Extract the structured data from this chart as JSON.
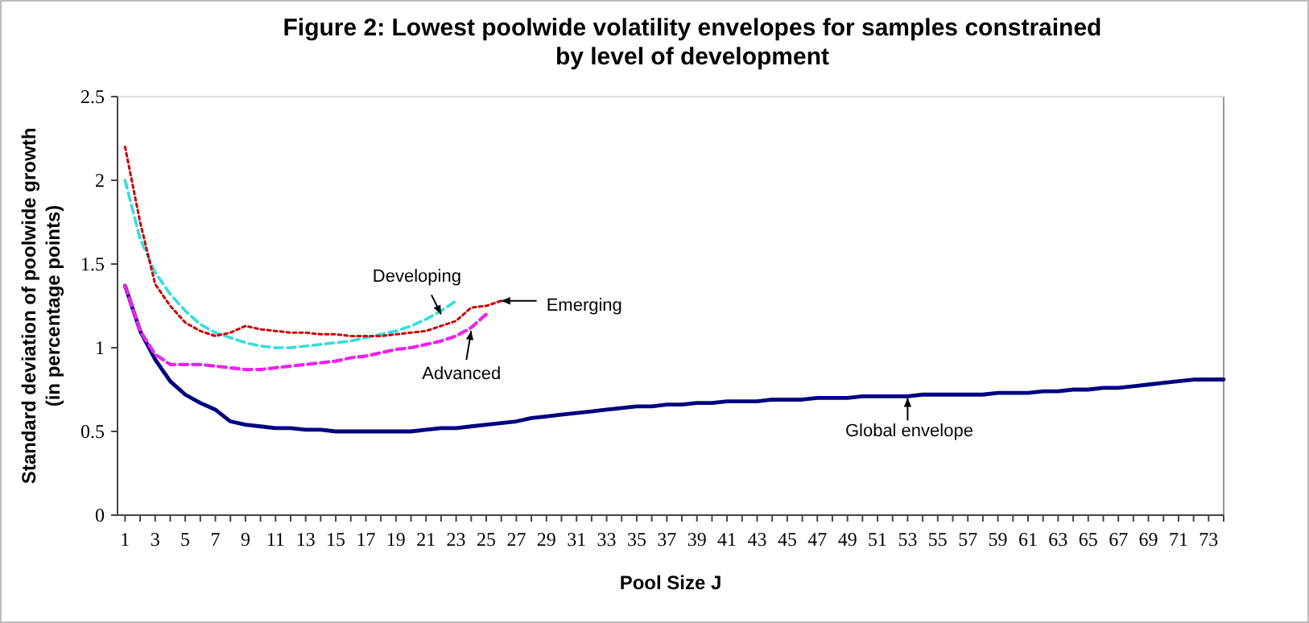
{
  "chart_data": {
    "type": "line",
    "title": "Figure 2: Lowest poolwide volatility envelopes for samples constrained\nby level of development",
    "xlabel": "Pool Size J",
    "ylabel": "Standard deviation of poolwide growth\n(in percentage points)",
    "series": [
      {
        "color": "#cc0000",
        "line_style": "dotted",
        "x": [
          1,
          2,
          3,
          4,
          5,
          6,
          7,
          8,
          9,
          10,
          11,
          12,
          13,
          14,
          15,
          16,
          17,
          18,
          19,
          20,
          21,
          22,
          23,
          24,
          25,
          26
        ],
        "values": [
          2.2,
          1.75,
          1.38,
          1.25,
          1.15,
          1.1,
          1.07,
          1.09,
          1.13,
          1.11,
          1.1,
          1.09,
          1.09,
          1.08,
          1.08,
          1.07,
          1.07,
          1.07,
          1.08,
          1.09,
          1.1,
          1.13,
          1.16,
          1.24,
          1.25,
          1.28
        ]
      },
      {
        "color": "#33dddd",
        "line_style": "dashed",
        "x": [
          1,
          2,
          3,
          4,
          5,
          6,
          7,
          8,
          9,
          10,
          11,
          12,
          13,
          14,
          15,
          16,
          17,
          18,
          19,
          20,
          21,
          22,
          23
        ],
        "values": [
          2.0,
          1.65,
          1.45,
          1.32,
          1.22,
          1.14,
          1.09,
          1.06,
          1.03,
          1.01,
          1.0,
          1.0,
          1.01,
          1.02,
          1.03,
          1.04,
          1.06,
          1.08,
          1.1,
          1.13,
          1.17,
          1.22,
          1.28
        ]
      },
      {
        "color": "#ee22ee",
        "line_style": "dashed",
        "x": [
          1,
          2,
          3,
          4,
          5,
          6,
          7,
          8,
          9,
          10,
          11,
          12,
          13,
          14,
          15,
          16,
          17,
          18,
          19,
          20,
          21,
          22,
          23,
          24,
          25
        ],
        "values": [
          1.37,
          1.1,
          0.96,
          0.9,
          0.9,
          0.9,
          0.89,
          0.88,
          0.87,
          0.87,
          0.88,
          0.89,
          0.9,
          0.91,
          0.92,
          0.94,
          0.95,
          0.97,
          0.99,
          1.0,
          1.02,
          1.04,
          1.07,
          1.12,
          1.2
        ]
      },
      {
        "color": "#000080",
        "line_style": "solid",
        "x": [
          1,
          2,
          3,
          4,
          5,
          6,
          7,
          8,
          9,
          10,
          11,
          12,
          13,
          14,
          15,
          16,
          17,
          18,
          19,
          20,
          21,
          22,
          23,
          24,
          25,
          26,
          27,
          28,
          29,
          30,
          31,
          32,
          33,
          34,
          35,
          36,
          37,
          38,
          39,
          40,
          41,
          42,
          43,
          44,
          45,
          46,
          47,
          48,
          49,
          50,
          51,
          52,
          53,
          54,
          55,
          56,
          57,
          58,
          59,
          60,
          61,
          62,
          63,
          64,
          65,
          66,
          67,
          68,
          69,
          70,
          71,
          72,
          73,
          74
        ],
        "values": [
          1.37,
          1.1,
          0.93,
          0.8,
          0.72,
          0.67,
          0.63,
          0.56,
          0.54,
          0.53,
          0.52,
          0.52,
          0.51,
          0.51,
          0.5,
          0.5,
          0.5,
          0.5,
          0.5,
          0.5,
          0.51,
          0.52,
          0.52,
          0.53,
          0.54,
          0.55,
          0.56,
          0.58,
          0.59,
          0.6,
          0.61,
          0.62,
          0.63,
          0.64,
          0.65,
          0.65,
          0.66,
          0.66,
          0.67,
          0.67,
          0.68,
          0.68,
          0.68,
          0.69,
          0.69,
          0.69,
          0.7,
          0.7,
          0.7,
          0.71,
          0.71,
          0.71,
          0.71,
          0.72,
          0.72,
          0.72,
          0.72,
          0.72,
          0.73,
          0.73,
          0.73,
          0.74,
          0.74,
          0.75,
          0.75,
          0.76,
          0.76,
          0.77,
          0.78,
          0.79,
          0.8,
          0.81,
          0.81,
          0.81
        ]
      }
    ],
    "annotations": [
      {
        "text": "Developing",
        "x": 22,
        "y": 1.2
      },
      {
        "text": "Emerging",
        "x": 26,
        "y": 1.28
      },
      {
        "text": "Advanced",
        "x": 24,
        "y": 1.1
      },
      {
        "text": "Global envelope",
        "x": 53,
        "y": 0.7
      }
    ],
    "xlim": [
      0.5,
      74
    ],
    "xticks": [
      1,
      {
        "value": 2,
        "label": null
      },
      3,
      {
        "value": 4,
        "label": null
      },
      5,
      {
        "value": 6,
        "label": null
      },
      7,
      {
        "value": 8,
        "label": null
      },
      9,
      {
        "value": 10,
        "label": null
      },
      11,
      {
        "value": 12,
        "label": null
      },
      13,
      {
        "value": 14,
        "label": null
      },
      15,
      {
        "value": 16,
        "label": null
      },
      17,
      {
        "value": 18,
        "label": null
      },
      19,
      {
        "value": 20,
        "label": null
      },
      21,
      {
        "value": 22,
        "label": null
      },
      23,
      {
        "value": 24,
        "label": null
      },
      25,
      {
        "value": 26,
        "label": null
      },
      27,
      {
        "value": 28,
        "label": null
      },
      29,
      {
        "value": 30,
        "label": null
      },
      31,
      {
        "value": 32,
        "label": null
      },
      33,
      {
        "value": 34,
        "label": null
      },
      35,
      {
        "value": 36,
        "label": null
      },
      37,
      {
        "value": 38,
        "label": null
      },
      39,
      {
        "value": 40,
        "label": null
      },
      41,
      {
        "value": 42,
        "label": null
      },
      43,
      {
        "value": 44,
        "label": null
      },
      45,
      {
        "value": 46,
        "label": null
      },
      47,
      {
        "value": 48,
        "label": null
      },
      49,
      {
        "value": 50,
        "label": null
      },
      51,
      {
        "value": 52,
        "label": null
      },
      53,
      {
        "value": 54,
        "label": null
      },
      55,
      {
        "value": 56,
        "label": null
      },
      57,
      {
        "value": 58,
        "label": null
      },
      59,
      {
        "value": 60,
        "label": null
      },
      61,
      {
        "value": 62,
        "label": null
      },
      63,
      {
        "value": 64,
        "label": null
      },
      65,
      {
        "value": 66,
        "label": null
      },
      67,
      {
        "value": 68,
        "label": null
      },
      69,
      {
        "value": 70,
        "label": null
      },
      71,
      {
        "value": 72,
        "label": null
      },
      73,
      {
        "value": 74,
        "label": null
      }
    ],
    "ylim": [
      0,
      2.5
    ],
    "yticks": [
      0,
      0.5,
      1,
      1.5,
      2,
      2.5
    ],
    "grid": false,
    "marker": "none"
  }
}
